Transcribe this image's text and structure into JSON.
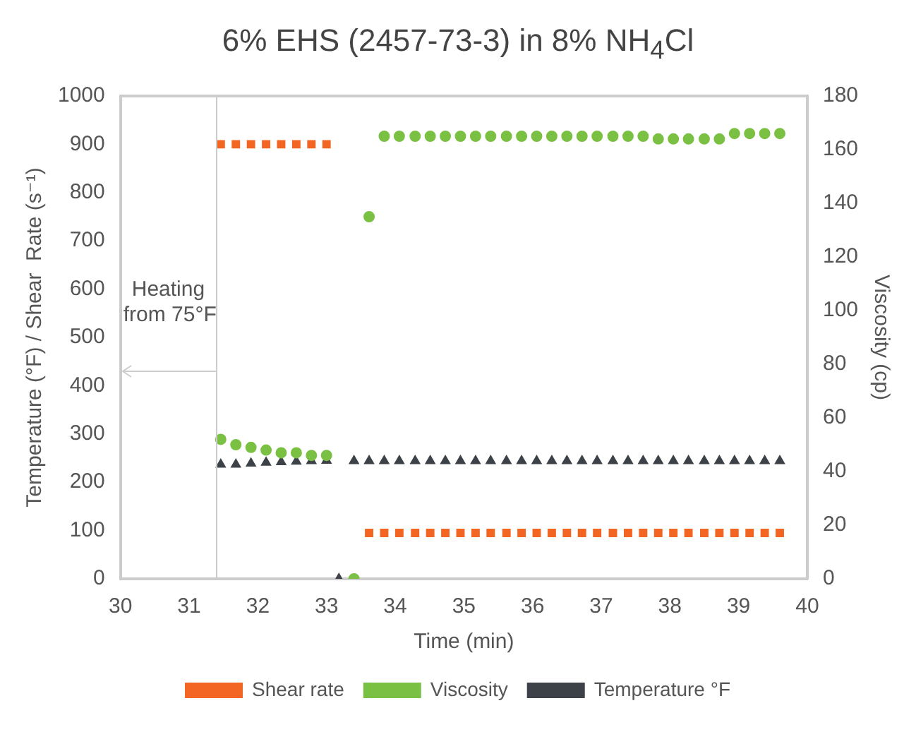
{
  "chart_data": {
    "type": "scatter",
    "title": "6% EHS (2457-73-3) in 8% NH$_{4}$Cl",
    "xlabel": "Time (min)",
    "ylabel": "Temperature (°F) / Shear  Rate (s⁻¹)",
    "y2label": "Viscosity (cp)",
    "xlim": [
      30,
      40
    ],
    "xticks": [
      30,
      31,
      32,
      33,
      34,
      35,
      36,
      37,
      38,
      39,
      40
    ],
    "ylim": [
      0,
      1000
    ],
    "yticks": [
      0,
      100,
      200,
      300,
      400,
      500,
      600,
      700,
      800,
      900,
      1000
    ],
    "y2lim": [
      0,
      180
    ],
    "y2ticks": [
      0,
      20,
      40,
      60,
      80,
      100,
      120,
      140,
      160,
      180
    ],
    "grid": false,
    "legend": "bottom",
    "ref_lines": [
      {
        "axis": "x",
        "value": 31.4,
        "color": "#cccccc"
      }
    ],
    "annotations": [
      "Heating from 75°F"
    ],
    "series": [
      {
        "name": "Shear rate",
        "color": "#f26522",
        "marker": "square",
        "x": [
          31.46,
          31.68,
          31.9,
          32.12,
          32.34,
          32.56,
          32.78,
          33.0,
          33.62,
          33.84,
          34.06,
          34.29,
          34.51,
          34.73,
          34.95,
          35.17,
          35.39,
          35.62,
          35.84,
          36.06,
          36.28,
          36.5,
          36.72,
          36.94,
          37.17,
          37.39,
          37.61,
          37.83,
          38.05,
          38.27,
          38.5,
          38.72,
          38.94,
          39.16,
          39.38,
          39.6
        ],
        "values": [
          900,
          900,
          900,
          900,
          900,
          900,
          900,
          900,
          95,
          95,
          95,
          95,
          95,
          95,
          95,
          95,
          95,
          95,
          95,
          95,
          95,
          95,
          95,
          95,
          95,
          95,
          95,
          95,
          95,
          95,
          95,
          95,
          95,
          95,
          95,
          95
        ]
      },
      {
        "name": "Viscosity",
        "color": "#7ac143",
        "marker": "circle",
        "axis": "y2",
        "x": [
          31.46,
          31.68,
          31.9,
          32.12,
          32.34,
          32.56,
          32.78,
          33.0,
          33.4,
          33.62,
          33.84,
          34.06,
          34.29,
          34.51,
          34.73,
          34.95,
          35.17,
          35.39,
          35.62,
          35.84,
          36.06,
          36.28,
          36.5,
          36.72,
          36.94,
          37.17,
          37.39,
          37.61,
          37.83,
          38.05,
          38.27,
          38.5,
          38.72,
          38.94,
          39.16,
          39.38,
          39.6
        ],
        "values": [
          52,
          50,
          49,
          48,
          47,
          47,
          46,
          46,
          0,
          135,
          165,
          165,
          165,
          165,
          165,
          165,
          165,
          165,
          165,
          165,
          165,
          165,
          165,
          165,
          165,
          165,
          165,
          165,
          164,
          164,
          164,
          164,
          164,
          166,
          166,
          166,
          166
        ]
      },
      {
        "name": "Temperature °F",
        "color": "#3d4249",
        "marker": "triangle",
        "x": [
          31.46,
          31.68,
          31.9,
          32.12,
          32.34,
          32.56,
          32.78,
          33.0,
          33.18,
          33.4,
          33.62,
          33.84,
          34.06,
          34.29,
          34.51,
          34.73,
          34.95,
          35.17,
          35.39,
          35.62,
          35.84,
          36.06,
          36.28,
          36.5,
          36.72,
          36.94,
          37.17,
          37.39,
          37.61,
          37.83,
          38.05,
          38.27,
          38.5,
          38.72,
          38.94,
          39.16,
          39.38,
          39.6
        ],
        "values": [
          237,
          237,
          239,
          241,
          242,
          243,
          244,
          245,
          0,
          244,
          244,
          244,
          244,
          244,
          244,
          244,
          244,
          244,
          244,
          244,
          244,
          244,
          244,
          244,
          244,
          244,
          244,
          244,
          244,
          244,
          244,
          244,
          244,
          244,
          244,
          244,
          244,
          244
        ]
      }
    ]
  }
}
